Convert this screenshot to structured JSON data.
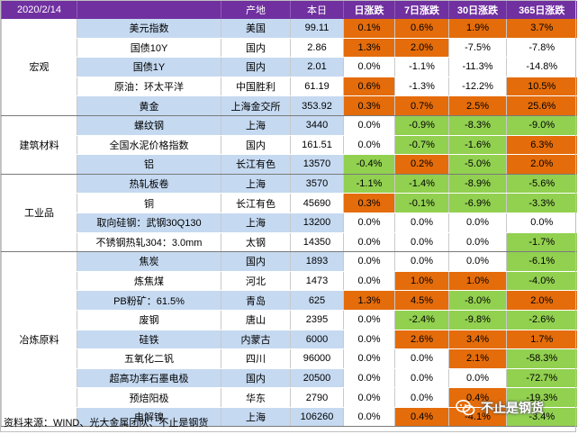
{
  "header": {
    "date": "2020/2/14",
    "origin": "产地",
    "today": "本日",
    "d1": "日涨跌",
    "d7": "7日涨跌",
    "d30": "30日涨跌",
    "d365": "365日涨跌"
  },
  "sectors": [
    {
      "name": "宏观",
      "rows": [
        {
          "name": "美元指数",
          "origin": "美国",
          "value": "99.11",
          "d1": "0.1%",
          "d7": "0.6%",
          "d30": "1.9%",
          "d365": "3.7%",
          "c": [
            "or",
            "or",
            "or",
            "or"
          ]
        },
        {
          "name": "国债10Y",
          "origin": "国内",
          "value": "2.86",
          "d1": "1.3%",
          "d7": "2.0%",
          "d30": "-7.5%",
          "d365": "-7.8%",
          "c": [
            "or",
            "or",
            "wh",
            "wh"
          ]
        },
        {
          "name": "国债1Y",
          "origin": "国内",
          "value": "2.01",
          "d1": "0.0%",
          "d7": "-1.1%",
          "d30": "-11.3%",
          "d365": "-14.8%",
          "c": [
            "wh",
            "wh",
            "wh",
            "wh"
          ]
        },
        {
          "name": "原油：环太平洋",
          "origin": "中国胜利",
          "value": "61.19",
          "d1": "0.6%",
          "d7": "-1.3%",
          "d30": "-12.2%",
          "d365": "10.5%",
          "c": [
            "or",
            "wh",
            "wh",
            "or"
          ]
        },
        {
          "name": "黄金",
          "origin": "上海金交所",
          "value": "353.92",
          "d1": "0.3%",
          "d7": "0.7%",
          "d30": "2.5%",
          "d365": "25.6%",
          "c": [
            "or",
            "or",
            "or",
            "or"
          ]
        }
      ]
    },
    {
      "name": "建筑材料",
      "rows": [
        {
          "name": "螺纹钢",
          "origin": "上海",
          "value": "3440",
          "d1": "0.0%",
          "d7": "-0.9%",
          "d30": "-8.3%",
          "d365": "-9.0%",
          "c": [
            "wh",
            "gn",
            "gn",
            "gn"
          ]
        },
        {
          "name": "全国水泥价格指数",
          "origin": "国内",
          "value": "161.51",
          "d1": "0.0%",
          "d7": "-0.7%",
          "d30": "-1.6%",
          "d365": "6.3%",
          "c": [
            "wh",
            "gn",
            "gn",
            "or"
          ]
        },
        {
          "name": "铝",
          "origin": "长江有色",
          "value": "13570",
          "d1": "-0.4%",
          "d7": "0.2%",
          "d30": "-5.0%",
          "d365": "2.0%",
          "c": [
            "gn",
            "or",
            "gn",
            "or"
          ]
        }
      ]
    },
    {
      "name": "工业品",
      "rows": [
        {
          "name": "热轧板卷",
          "origin": "上海",
          "value": "3570",
          "d1": "-1.1%",
          "d7": "-1.4%",
          "d30": "-8.9%",
          "d365": "-5.6%",
          "c": [
            "gn",
            "gn",
            "gn",
            "gn"
          ]
        },
        {
          "name": "铜",
          "origin": "长江有色",
          "value": "45690",
          "d1": "0.3%",
          "d7": "-0.1%",
          "d30": "-6.9%",
          "d365": "-3.3%",
          "c": [
            "or",
            "gn",
            "gn",
            "gn"
          ]
        },
        {
          "name": "取向硅钢：武钢30Q130",
          "origin": "上海",
          "value": "13200",
          "d1": "0.0%",
          "d7": "0.0%",
          "d30": "0.0%",
          "d365": "0.0%",
          "c": [
            "wh",
            "wh",
            "wh",
            "wh"
          ]
        },
        {
          "name": "不锈钢热轧304：3.0mm",
          "origin": "太钢",
          "value": "14350",
          "d1": "0.0%",
          "d7": "0.0%",
          "d30": "0.0%",
          "d365": "-1.7%",
          "c": [
            "wh",
            "wh",
            "wh",
            "gn"
          ]
        }
      ]
    },
    {
      "name": "冶炼原料",
      "rows": [
        {
          "name": "焦炭",
          "origin": "国内",
          "value": "1893",
          "d1": "0.0%",
          "d7": "0.0%",
          "d30": "0.0%",
          "d365": "-6.1%",
          "c": [
            "wh",
            "wh",
            "wh",
            "gn"
          ]
        },
        {
          "name": "炼焦煤",
          "origin": "河北",
          "value": "1473",
          "d1": "0.0%",
          "d7": "1.0%",
          "d30": "1.0%",
          "d365": "-4.0%",
          "c": [
            "wh",
            "or",
            "or",
            "gn"
          ]
        },
        {
          "name": "PB粉矿：61.5%",
          "origin": "青岛",
          "value": "625",
          "d1": "1.3%",
          "d7": "4.5%",
          "d30": "-8.0%",
          "d365": "2.0%",
          "c": [
            "or",
            "or",
            "gn",
            "or"
          ]
        },
        {
          "name": "废钢",
          "origin": "唐山",
          "value": "2395",
          "d1": "0.0%",
          "d7": "-2.4%",
          "d30": "-9.8%",
          "d365": "-2.6%",
          "c": [
            "wh",
            "gn",
            "gn",
            "gn"
          ]
        },
        {
          "name": "硅铁",
          "origin": "内蒙古",
          "value": "6000",
          "d1": "0.0%",
          "d7": "2.6%",
          "d30": "3.4%",
          "d365": "1.7%",
          "c": [
            "wh",
            "or",
            "or",
            "or"
          ]
        },
        {
          "name": "五氧化二钒",
          "origin": "四川",
          "value": "96000",
          "d1": "0.0%",
          "d7": "0.0%",
          "d30": "2.1%",
          "d365": "-58.3%",
          "c": [
            "wh",
            "wh",
            "or",
            "gn"
          ]
        },
        {
          "name": "超高功率石墨电极",
          "origin": "国内",
          "value": "20500",
          "d1": "0.0%",
          "d7": "0.0%",
          "d30": "0.0%",
          "d365": "-72.7%",
          "c": [
            "wh",
            "wh",
            "wh",
            "gn"
          ]
        },
        {
          "name": "预焙阳极",
          "origin": "华东",
          "value": "2790",
          "d1": "0.0%",
          "d7": "0.0%",
          "d30": "0.4%",
          "d365": "-19.3%",
          "c": [
            "wh",
            "wh",
            "or",
            "gn"
          ]
        },
        {
          "name": "电解镍",
          "origin": "上海",
          "value": "106260",
          "d1": "0.0%",
          "d7": "0.4%",
          "d30": "-4.1%",
          "d365": "-3.4%",
          "c": [
            "wh",
            "or",
            "or",
            "gn"
          ]
        }
      ]
    }
  ],
  "source": "资料来源：WIND、光大金属团队、不止是钢货",
  "watermark": "不止是钢货",
  "colors": {
    "purple": "#7030a0",
    "blue": "#c5d9f1",
    "orange": "#e46c0a",
    "green": "#92d050"
  }
}
